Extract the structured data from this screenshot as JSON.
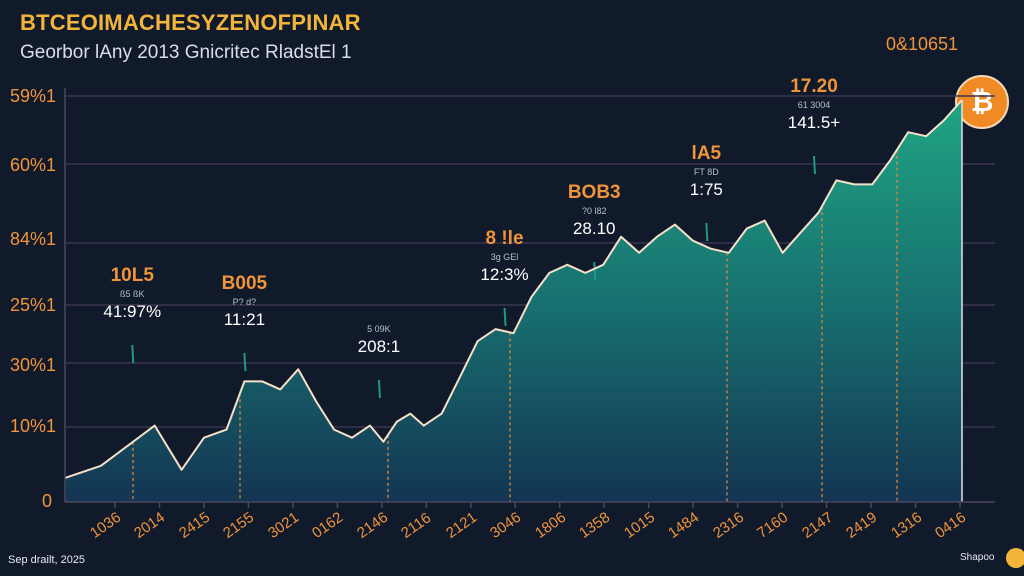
{
  "header": {
    "title": "BTCEOIMACHESYZENOFPINAR",
    "subtitle": "Georbor lAny 2013 Gnicritec RladstEl 1",
    "top_price": "0&10651",
    "logo_icon": "bitcoin-icon",
    "logo_glyph": "₿"
  },
  "footer": {
    "left_text": "Sep drailt, 2025",
    "right_text": "Shapoo"
  },
  "chart_data": {
    "type": "area",
    "title": "BTCEOIMACHESYZENOFPINAR",
    "subtitle": "Georbor lAny 2013 Gnicritec RladstEl 1",
    "xlabel": "",
    "ylabel": "",
    "y_tick_labels": [
      "0",
      "10%1",
      "30%1",
      "25%1",
      "84%1",
      "60%1",
      "59%1"
    ],
    "x_tick_labels": [
      "1036",
      "2014",
      "2415",
      "2155",
      "3021",
      "0162",
      "2146",
      "2116",
      "2121",
      "3046",
      "1806",
      "1358",
      "1015",
      "1484",
      "2316",
      "7160",
      "2147",
      "2419",
      "1316",
      "0416"
    ],
    "grid": true,
    "legend": null,
    "series": [
      {
        "name": "BTC price",
        "x_pct": [
          0,
          4,
          7,
          10,
          13,
          15.5,
          18,
          20,
          22,
          24,
          26,
          28,
          30,
          32,
          34,
          35.5,
          37,
          38.5,
          40,
          42,
          44,
          46,
          48,
          50,
          52,
          54,
          56,
          58,
          60,
          62,
          64,
          66,
          68,
          70,
          72,
          74,
          76,
          78,
          80,
          82,
          84,
          86,
          88,
          90,
          92,
          94,
          96,
          98,
          100
        ],
        "values": [
          6,
          9,
          14,
          19,
          8,
          16,
          18,
          30,
          30,
          28,
          33,
          25,
          18,
          16,
          19,
          15,
          20,
          22,
          19,
          22,
          31,
          40,
          43,
          42,
          51,
          57,
          59,
          57,
          59,
          66,
          62,
          66,
          69,
          65,
          63,
          62,
          68,
          70,
          62,
          67,
          72,
          80,
          79,
          79,
          85,
          92,
          91,
          95,
          100
        ]
      }
    ],
    "annotations": [
      {
        "label": "10L5",
        "sub": "ß5 ßK",
        "value": "41:97%",
        "x_pct": 7.5
      },
      {
        "label": "B005",
        "sub": "P? d?",
        "value": "11:21",
        "x_pct": 20
      },
      {
        "label": "",
        "sub": "5 09K",
        "value": "208:1",
        "x_pct": 35
      },
      {
        "label": "8 !le",
        "sub": "3g GEl",
        "value": "12:3%",
        "x_pct": 49
      },
      {
        "label": "BOB3",
        "sub": "?0 l82",
        "value": "28.10",
        "x_pct": 59
      },
      {
        "label": "lA5",
        "sub": "FT 8D",
        "value": "1:75",
        "x_pct": 71.5
      },
      {
        "label": "17.20",
        "sub": "61 3004",
        "value": "141.5+",
        "x_pct": 83.5
      }
    ]
  }
}
